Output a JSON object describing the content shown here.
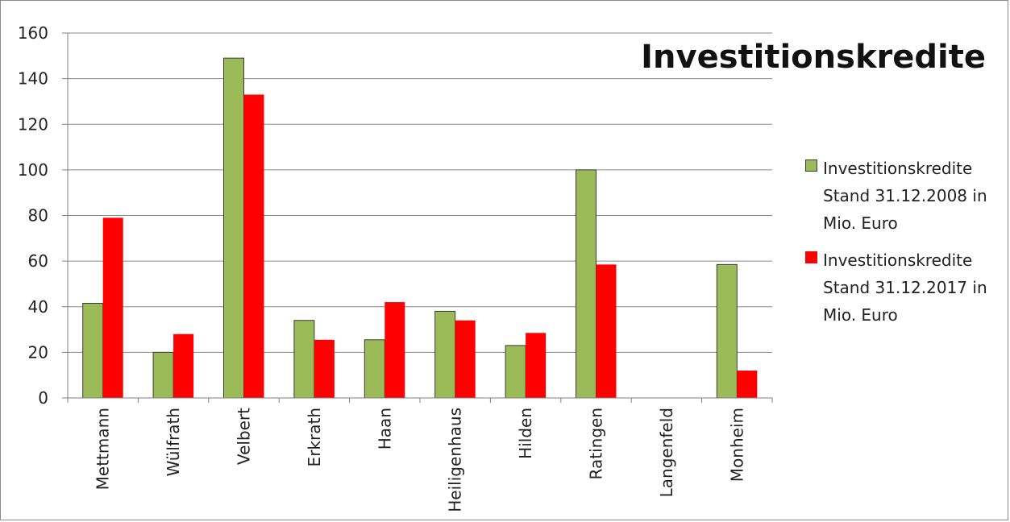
{
  "chart_data": {
    "type": "bar",
    "title": "Investitionskredite",
    "categories": [
      "Mettmann",
      "Wülfrath",
      "Velbert",
      "Erkrath",
      "Haan",
      "Heiligenhaus",
      "Hilden",
      "Ratingen",
      "Langenfeld",
      "Monheim"
    ],
    "series": [
      {
        "name": "Investitionskredite Stand 31.12.2008 in Mio. Euro",
        "color": "#9bbb59",
        "values": [
          41.5,
          20,
          149,
          34,
          25.5,
          38,
          23,
          100,
          0,
          58.5
        ]
      },
      {
        "name": "Investitionskredite Stand 31.12.2017 in Mio. Euro",
        "color": "#ff0000",
        "values": [
          79,
          28,
          133,
          25.5,
          42,
          34,
          28.5,
          58.5,
          0,
          12
        ]
      }
    ],
    "ylim": [
      0,
      160
    ],
    "yticks": [
      0,
      20,
      40,
      60,
      80,
      100,
      120,
      140,
      160
    ],
    "grid": true,
    "legend_position": "right",
    "xlabel": "",
    "ylabel": ""
  }
}
